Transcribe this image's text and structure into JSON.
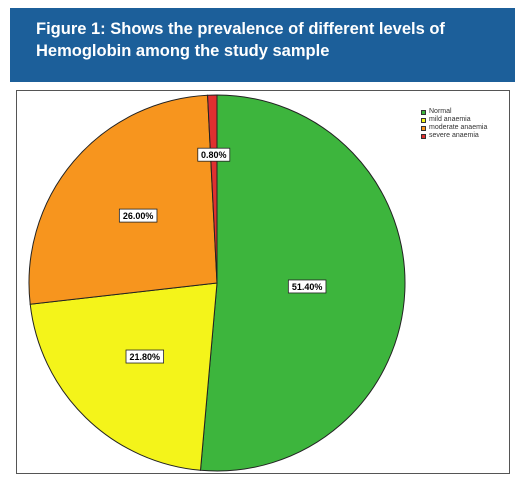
{
  "figure": {
    "title_line1": "Figure 1: Shows the prevalence of different levels of",
    "title_line2": "Hemoglobin among the study sample"
  },
  "chart_data": {
    "type": "pie",
    "categories": [
      "Normal",
      "mild anaemia",
      "moderate anaemia",
      "severe anaemia"
    ],
    "values": [
      51.4,
      21.8,
      26.0,
      0.8
    ],
    "labels": [
      "51.40%",
      "21.80%",
      "26.00%",
      "0.80%"
    ],
    "colors": [
      "#3db53d",
      "#f4f41a",
      "#f7951e",
      "#e03030"
    ],
    "start_angle_deg": 0,
    "direction": "clockwise",
    "legend_position": "top-right"
  }
}
